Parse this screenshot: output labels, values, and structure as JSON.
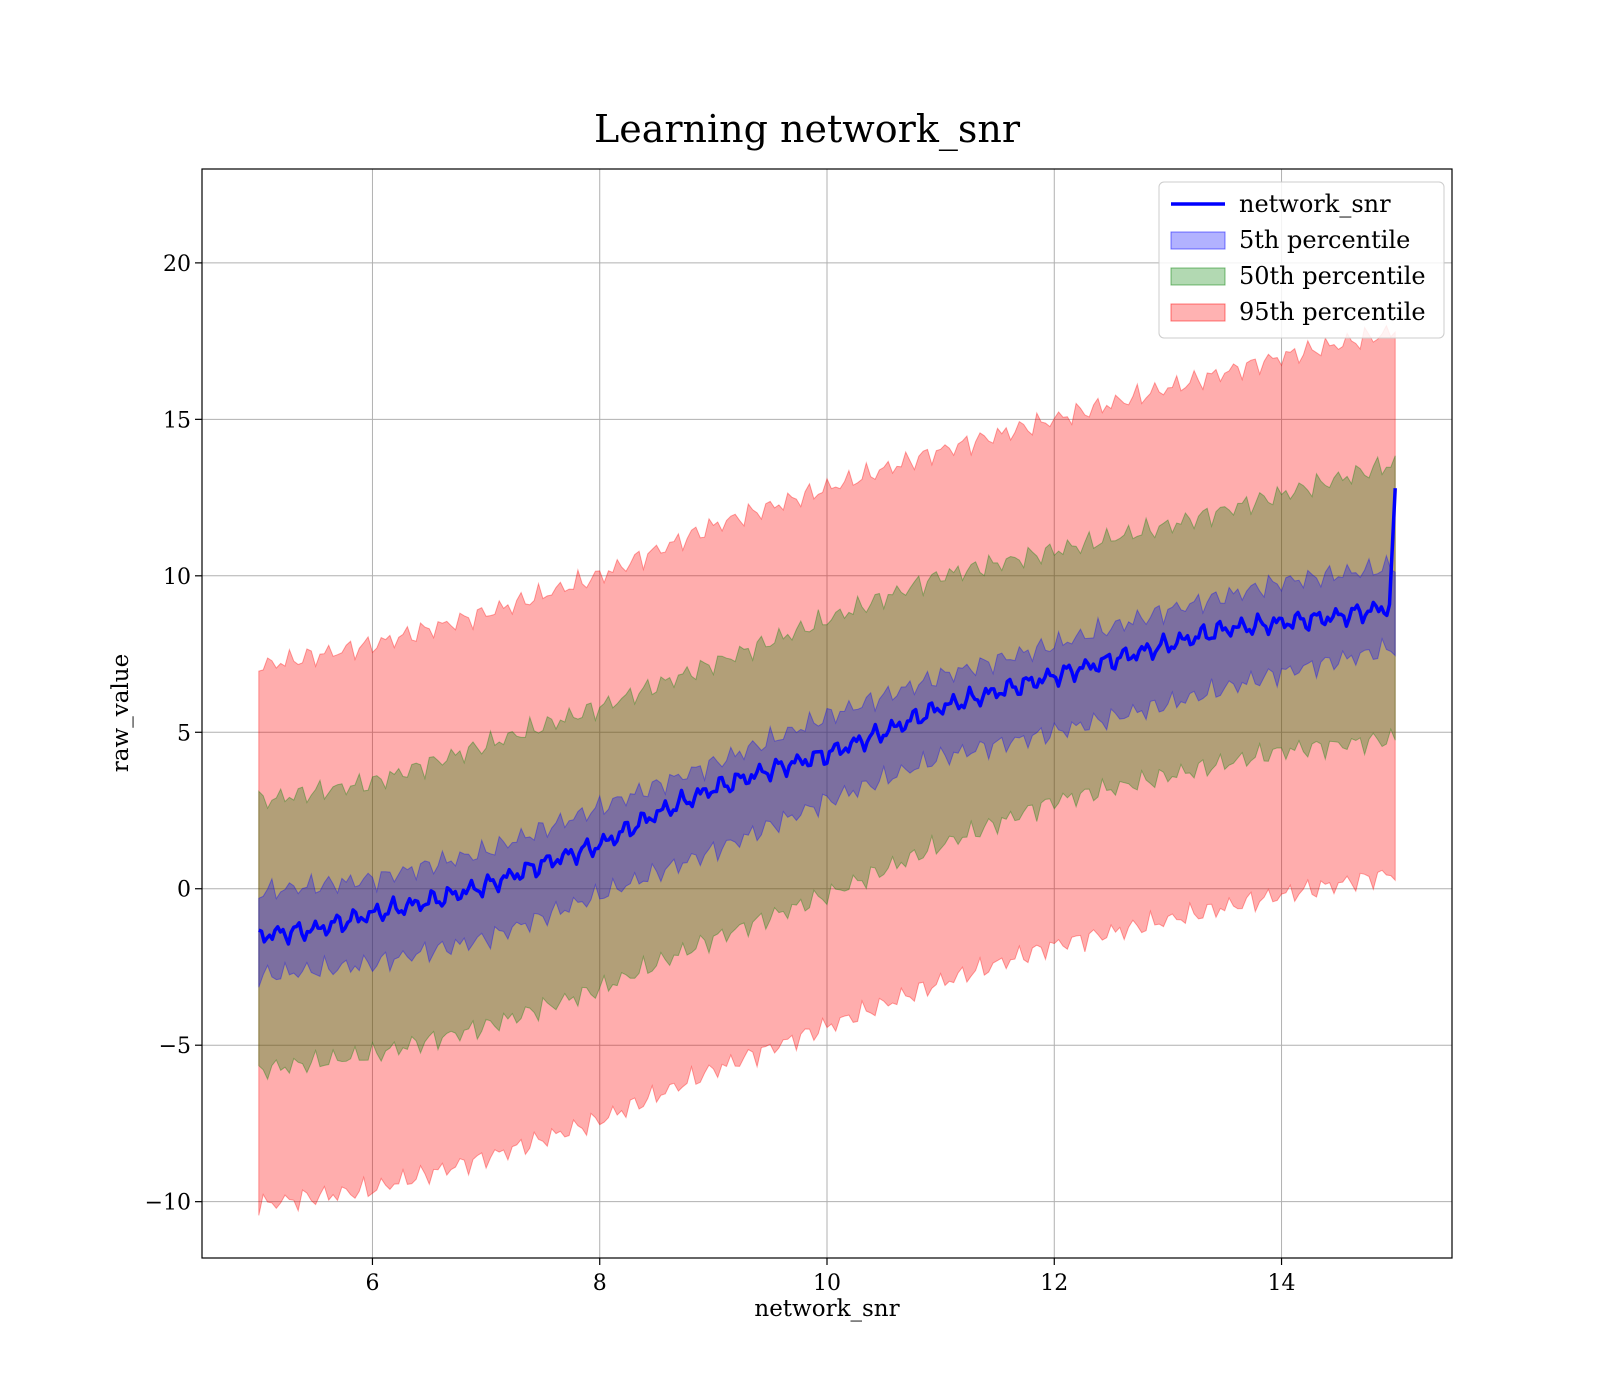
{
  "chart_data": {
    "type": "line",
    "title": "Learning network_snr",
    "xlabel": "network_snr",
    "ylabel": "raw_value",
    "xlim": [
      4.5,
      15.5
    ],
    "ylim": [
      -11.8,
      23
    ],
    "xticks": [
      6,
      8,
      10,
      12,
      14
    ],
    "yticks": [
      -10,
      -5,
      0,
      5,
      10,
      15,
      20
    ],
    "xtick_labels": [
      "6",
      "8",
      "10",
      "12",
      "14"
    ],
    "ytick_labels": [
      "−10",
      "−5",
      "0",
      "5",
      "10",
      "15",
      "20"
    ],
    "grid": true,
    "legend_position": "top-right",
    "line": {
      "name": "network_snr",
      "color": "#0000ff",
      "x": [
        5.0,
        5.5,
        6.0,
        6.5,
        7.0,
        7.5,
        8.0,
        8.5,
        9.0,
        9.5,
        10.0,
        10.5,
        11.0,
        11.5,
        12.0,
        12.5,
        13.0,
        13.5,
        14.0,
        14.5,
        14.95,
        15.0
      ],
      "y": [
        -1.5,
        -1.3,
        -0.8,
        -0.4,
        0.1,
        0.8,
        1.4,
        2.4,
        3.2,
        3.8,
        4.3,
        5.0,
        5.8,
        6.3,
        6.8,
        7.3,
        7.8,
        8.3,
        8.5,
        8.7,
        9.0,
        12.8
      ]
    },
    "bands": [
      {
        "name": "95th percentile",
        "color": "#ff0000",
        "opacity": 0.32,
        "x": [
          5.0,
          6.0,
          7.0,
          8.0,
          9.0,
          10.0,
          11.0,
          12.0,
          13.0,
          14.0,
          15.0
        ],
        "upper": [
          7.1,
          7.8,
          8.8,
          10.0,
          11.6,
          12.8,
          14.0,
          15.0,
          16.0,
          17.0,
          17.8
        ],
        "lower": [
          -10.1,
          -9.6,
          -8.6,
          -7.4,
          -5.8,
          -4.4,
          -3.0,
          -1.8,
          -1.0,
          -0.2,
          0.5
        ]
      },
      {
        "name": "50th percentile",
        "color": "#008000",
        "opacity": 0.3,
        "x": [
          5.0,
          6.0,
          7.0,
          8.0,
          9.0,
          10.0,
          11.0,
          12.0,
          13.0,
          14.0,
          15.0
        ],
        "upper": [
          2.8,
          3.4,
          4.6,
          5.8,
          7.2,
          8.6,
          10.0,
          10.8,
          11.6,
          12.6,
          13.6
        ],
        "lower": [
          -5.8,
          -5.3,
          -4.4,
          -3.2,
          -1.6,
          -0.2,
          1.4,
          2.8,
          3.6,
          4.4,
          4.8
        ]
      },
      {
        "name": "5th percentile",
        "color": "#0000ff",
        "opacity": 0.3,
        "x": [
          5.0,
          6.0,
          7.0,
          8.0,
          9.0,
          10.0,
          11.0,
          12.0,
          13.0,
          14.0,
          15.0
        ],
        "upper": [
          -0.1,
          0.3,
          1.2,
          2.6,
          4.0,
          5.5,
          6.8,
          7.8,
          8.9,
          9.8,
          10.3
        ],
        "lower": [
          -2.8,
          -2.4,
          -1.6,
          -0.2,
          1.2,
          2.8,
          4.2,
          5.0,
          5.9,
          6.9,
          7.7
        ]
      }
    ],
    "legend": [
      {
        "label": "network_snr",
        "kind": "line",
        "color": "#0000ff"
      },
      {
        "label": "5th percentile",
        "kind": "patch",
        "color": "#0000ff"
      },
      {
        "label": "50th percentile",
        "kind": "patch",
        "color": "#008000"
      },
      {
        "label": "95th percentile",
        "kind": "patch",
        "color": "#ff0000"
      }
    ]
  }
}
